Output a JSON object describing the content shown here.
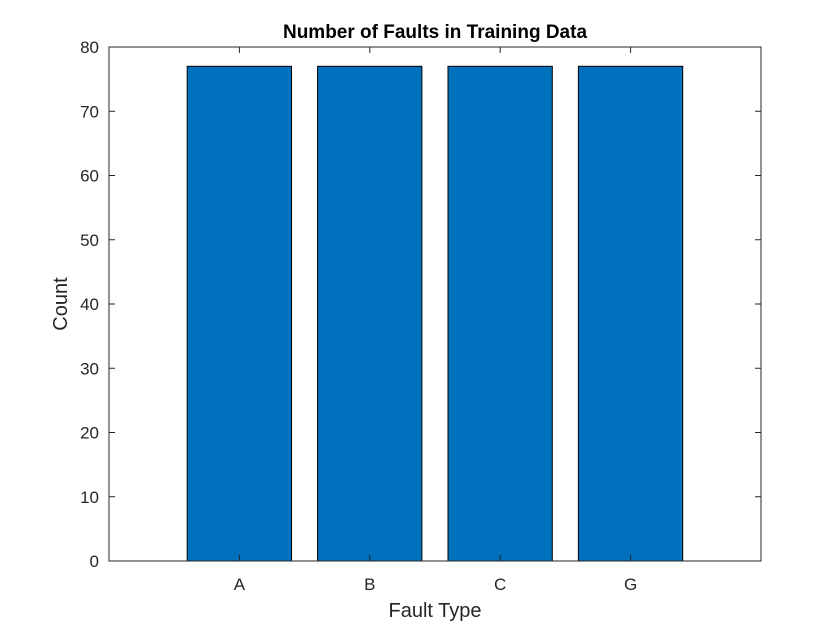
{
  "chart_data": {
    "type": "bar",
    "title": "Number of Faults in Training Data",
    "xlabel": "Fault Type",
    "ylabel": "Count",
    "categories": [
      "A",
      "B",
      "C",
      "G"
    ],
    "values": [
      77,
      77,
      77,
      77
    ],
    "ylim": [
      0,
      80
    ],
    "yticks": [
      0,
      10,
      20,
      30,
      40,
      50,
      60,
      70,
      80
    ],
    "grid": false,
    "bar_color": "#0072BD",
    "bar_edge_color": "#000000"
  }
}
